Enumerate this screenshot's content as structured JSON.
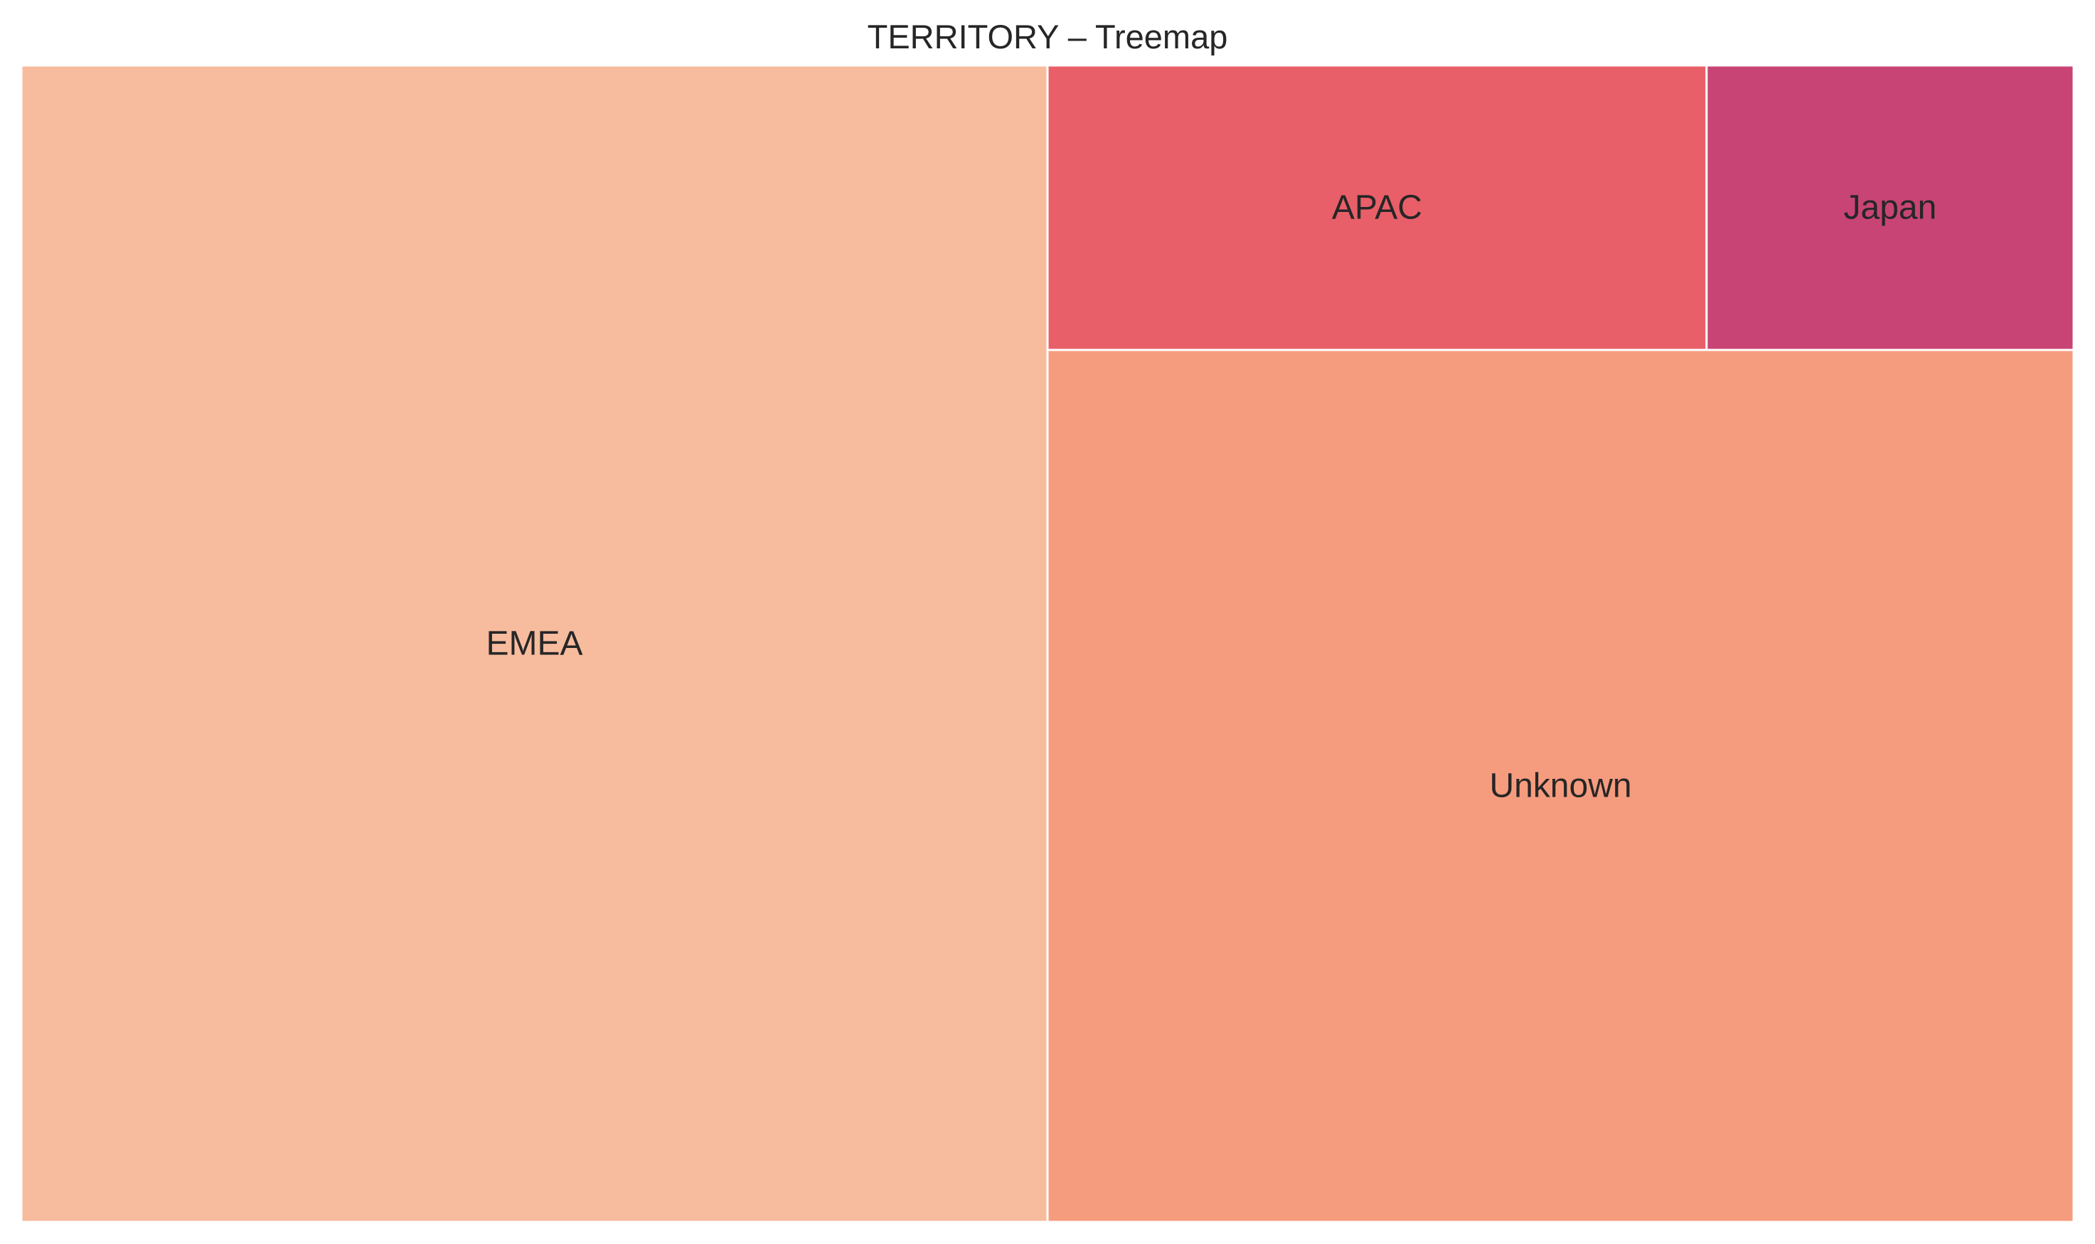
{
  "chart_data": {
    "type": "treemap",
    "title": "TERRITORY – Treemap",
    "tiles": [
      {
        "label": "EMEA",
        "value": 50.0,
        "color": "#f7bc9e"
      },
      {
        "label": "Unknown",
        "value": 37.7,
        "color": "#f69c7e"
      },
      {
        "label": "APAC",
        "value": 7.9,
        "color": "#e85f69"
      },
      {
        "label": "Japan",
        "value": 4.4,
        "color": "#c84474"
      }
    ],
    "border_color": "#ffffff",
    "legend": "none",
    "axes": "none"
  }
}
